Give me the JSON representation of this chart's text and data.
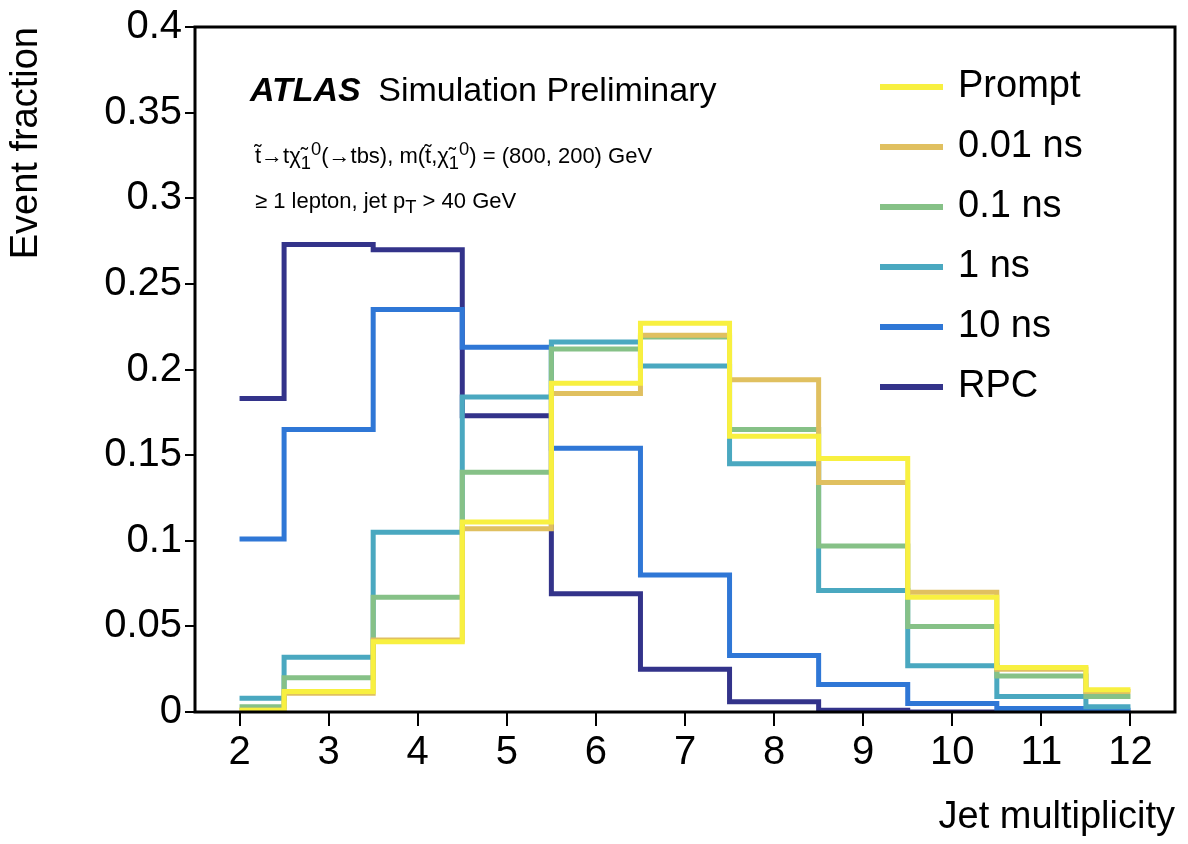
{
  "chart_data": {
    "type": "step",
    "xlabel": "Jet multiplicity",
    "ylabel": "Event fraction",
    "annotations": [
      "ATLAS Simulation Preliminary",
      "t̃→tχ̃$_{1}$$^{0}$(→tbs), m(t̃,χ̃$_{1}$$^{0}$) = (800, 200) GeV",
      "≥ 1 lepton, jet p$_{T}$ > 40 GeV"
    ],
    "x": [
      2,
      3,
      4,
      5,
      6,
      7,
      8,
      9,
      10,
      11,
      12
    ],
    "series": [
      {
        "name": "Prompt",
        "color": "#f8f040",
        "values": [
          0.001,
          0.012,
          0.041,
          0.111,
          0.192,
          0.227,
          0.161,
          0.148,
          0.067,
          0.026,
          0.013
        ]
      },
      {
        "name": "0.01 ns",
        "color": "#e0c060",
        "values": [
          0.001,
          0.011,
          0.042,
          0.107,
          0.186,
          0.22,
          0.194,
          0.134,
          0.07,
          0.025,
          0.012
        ]
      },
      {
        "name": "0.1 ns",
        "color": "#86c187",
        "values": [
          0.003,
          0.02,
          0.067,
          0.14,
          0.212,
          0.219,
          0.165,
          0.097,
          0.05,
          0.021,
          0.009
        ]
      },
      {
        "name": "1 ns",
        "color": "#4aa8c0",
        "values": [
          0.008,
          0.032,
          0.105,
          0.184,
          0.216,
          0.202,
          0.145,
          0.071,
          0.027,
          0.009,
          0.003
        ]
      },
      {
        "name": "10 ns",
        "color": "#2f77d6",
        "values": [
          0.101,
          0.165,
          0.235,
          0.213,
          0.154,
          0.08,
          0.033,
          0.016,
          0.005,
          0.002,
          0.001
        ]
      },
      {
        "name": "RPC",
        "color": "#33338a",
        "values": [
          0.183,
          0.273,
          0.27,
          0.173,
          0.069,
          0.025,
          0.006,
          0.001,
          0,
          0,
          0
        ]
      }
    ],
    "xlim": [
      1.5,
      12.5
    ],
    "xticks": [
      2,
      3,
      4,
      5,
      6,
      7,
      8,
      9,
      10,
      11,
      12
    ],
    "ylim": [
      0,
      0.4
    ],
    "yticks": [
      0,
      0.05,
      0.1,
      0.15,
      0.2,
      0.25,
      0.3,
      0.35,
      0.4
    ],
    "grid": false,
    "legend": "top right",
    "line_style": "solid",
    "marker": "none"
  }
}
